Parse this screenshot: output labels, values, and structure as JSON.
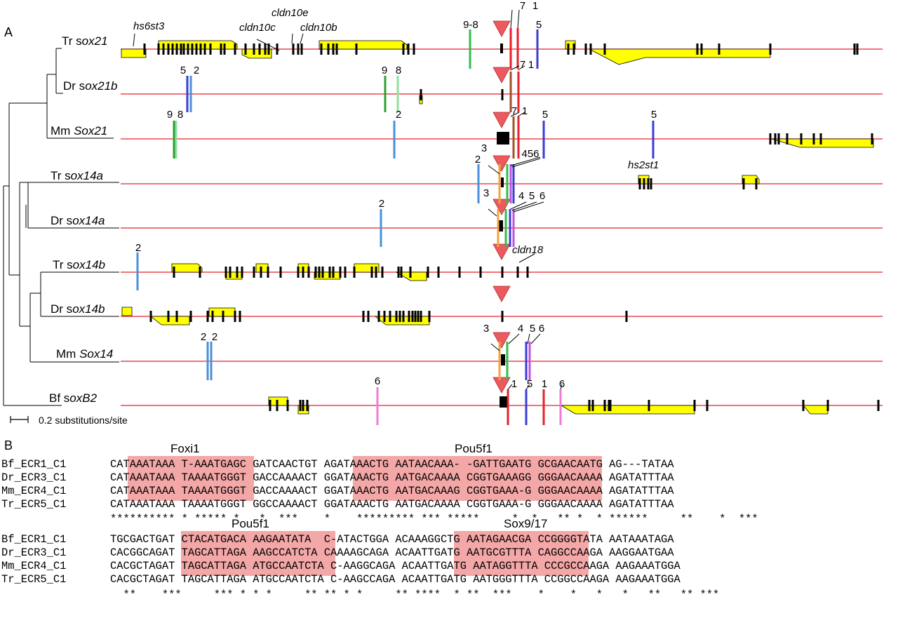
{
  "panel_a_label": "A",
  "panel_b_label": "B",
  "scale_bar_label": "0.2 substitutions/site",
  "colors": {
    "axis_line": "#e8202a",
    "gene_fill": "#ffff00",
    "exon": "#000000",
    "triangle": "#ec5a60",
    "ecr1": "#e8202a",
    "ecr2": "#4a90d9",
    "ecr3": "#f2a33a",
    "ecr4": "#2fbf4a",
    "ecr5": "#3b3bd6",
    "ecr6": "#c04fe6",
    "ecr7": "#a0502a",
    "ecr8": "#8fe0a0",
    "ecr9": "#2fa030",
    "motif_highlight": "#f4a7a7"
  },
  "tracks": [
    {
      "species": "Tr",
      "gene": "sox21",
      "gene_style": "mixed"
    },
    {
      "species": "Dr",
      "gene": "sox21b",
      "gene_style": "mixed"
    },
    {
      "species": "Mm",
      "gene": "Sox21",
      "gene_style": "italic"
    },
    {
      "species": "Tr",
      "gene": "sox14a",
      "gene_style": "mixed"
    },
    {
      "species": "Dr",
      "gene": "sox14a",
      "gene_style": "mixed"
    },
    {
      "species": "Tr",
      "gene": "sox14b",
      "gene_style": "mixed"
    },
    {
      "species": "Dr",
      "gene": "sox14b",
      "gene_style": "mixed"
    },
    {
      "species": "Mm",
      "gene": "Sox14",
      "gene_style": "italic"
    },
    {
      "species": "Bf",
      "gene": "soxB2",
      "gene_style": "mixed"
    }
  ],
  "gene_labels": {
    "hs6st3": "hs6st3",
    "cldn10c": "cldn10c",
    "cldn10e": "cldn10e",
    "cldn10b": "cldn10b",
    "hs2st1": "hs2st1",
    "cldn18": "cldn18"
  },
  "ecr_numbers": {
    "r0_98": "9-8",
    "r0_7": "7",
    "r0_1": "1",
    "r0_5": "5",
    "r1_5": "5",
    "r1_2": "2",
    "r1_9": "9",
    "r1_8": "8",
    "r1_7": "7",
    "r1_1": "1",
    "r2_9": "9",
    "r2_8": "8",
    "r2_2": "2",
    "r2_7": "7",
    "r2_1": "1",
    "r2_5a": "5",
    "r2_5b": "5",
    "r3_2": "2",
    "r3_3": "3",
    "r3_456": "456",
    "r4_2": "2",
    "r4_3": "3",
    "r4_4": "4",
    "r4_5": "5",
    "r4_6": "6",
    "r5_2": "2",
    "r7_2a": "2",
    "r7_2b": "2",
    "r7_3": "3",
    "r7_4": "4",
    "r7_5": "5",
    "r7_6": "6",
    "r8_6": "6",
    "r8_1a": "1",
    "r8_5": "5",
    "r8_1b": "1",
    "r8_6b": "6"
  },
  "alignment_blocks": [
    {
      "motif_labels": [
        "Foxi1",
        "Pou5f1"
      ],
      "rows": [
        {
          "name": "Bf_ECR1_C1",
          "seq": "CATAAATAAA T-AAATGAGC GATCAACTGT AGATAAACTG AATAACAAA- -GATTGAATG GCGAACAATG AG---TATAA"
        },
        {
          "name": "Dr_ECR3_C1",
          "seq": "CATAAATAAA TAAAATGGGT GACCAAAACT GGATAAACTG AATGACAAAA CGGTGAAAGG GGGAACAAAA AGATATTTAA"
        },
        {
          "name": "Mm_ECR4_C1",
          "seq": "CATAAATAAA TAAAATGGGT GACCAAAACT GGATAAACTG AATGACAAAG CGGTGAAA-G GGGAACAAAA AGATATTTAA"
        },
        {
          "name": "Tr_ECR5_C1",
          "seq": "CATAAATAAA TAAAATGGGT GGCCAAAACT GGATAAACTG AATGACAAAA CGGTGAAA-G GGGAACAAAA AGATATTTAA"
        }
      ],
      "conservation": "********** * ***** *   *  ***    *    ********* *** *****     *  *   ** *  * ******     **    *  ***"
    },
    {
      "motif_labels": [
        "Pou5f1",
        "Sox9/17"
      ],
      "rows": [
        {
          "name": "Bf_ECR1_C1",
          "seq": "TGCGACTGAT CTACATGACA AAGAATATA  C-ATACTGGA ACAAAGGCTG AATAGAACGA CCGGGGTATA AATAAATAGA"
        },
        {
          "name": "Dr_ECR3_C1",
          "seq": "CACGGCAGAT TAGCATTAGA AAGCCATCTA CAAAAGCAGA ACAATTGATG AATGCGTTTA CAGGCCAAGA AAGGAATGAA"
        },
        {
          "name": "Mm_ECR4_C1",
          "seq": "CACGCTAGAT TAGCATTAGA ATGCCAATCTA C-AAGGCAGA ACAATTGATG AATAGGTTTA CCCGCCAAGA AAGAAATGGA"
        },
        {
          "name": "Tr_ECR5_C1",
          "seq": "CACGCTAGAT TAGCATTAGA ATGCCAATCTA C-AAGCCAGA ACAATTGATG AATGGGTTTA CCGGCCAAGA AAGAAATGGA"
        }
      ],
      "conservation": "  **    ***     *** * * *     ** ** * *     ** ****  * **  ***    *    *   *   *   **   ** ***"
    }
  ]
}
